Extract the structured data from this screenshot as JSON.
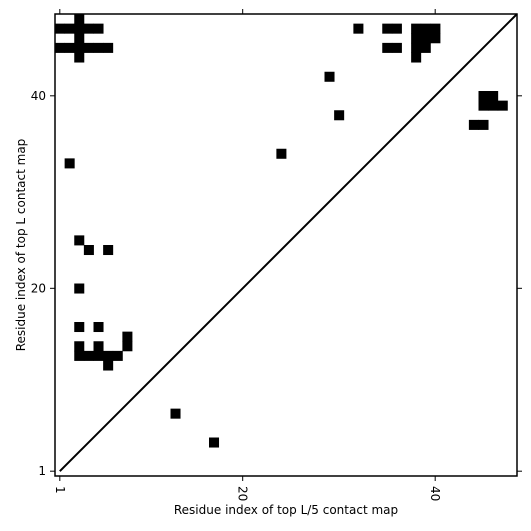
{
  "chart_data": {
    "type": "heatmap",
    "title": "",
    "xlabel": "Residue index of top L/5 contact map",
    "ylabel": "Residue index of top L contact map",
    "xlim": [
      0.5,
      48.5
    ],
    "ylim": [
      0.5,
      48.5
    ],
    "x_ticks": [
      1,
      20,
      40
    ],
    "y_ticks": [
      1,
      20,
      40
    ],
    "diagonal": true,
    "cell_color": "#000000",
    "cells": [
      [
        3,
        48
      ],
      [
        3,
        47
      ],
      [
        3,
        46
      ],
      [
        3,
        45
      ],
      [
        3,
        44
      ],
      [
        1,
        47
      ],
      [
        2,
        47
      ],
      [
        4,
        47
      ],
      [
        5,
        47
      ],
      [
        1,
        45
      ],
      [
        2,
        45
      ],
      [
        4,
        45
      ],
      [
        5,
        45
      ],
      [
        6,
        45
      ],
      [
        32,
        47
      ],
      [
        35,
        47
      ],
      [
        36,
        47
      ],
      [
        35,
        45
      ],
      [
        36,
        45
      ],
      [
        38,
        47
      ],
      [
        39,
        47
      ],
      [
        40,
        47
      ],
      [
        38,
        46
      ],
      [
        39,
        46
      ],
      [
        40,
        46
      ],
      [
        38,
        45
      ],
      [
        39,
        45
      ],
      [
        38,
        44
      ],
      [
        29,
        42
      ],
      [
        30,
        38
      ],
      [
        24,
        34
      ],
      [
        2,
        33
      ],
      [
        45,
        40
      ],
      [
        46,
        40
      ],
      [
        46,
        39
      ],
      [
        47,
        39
      ],
      [
        45,
        39
      ],
      [
        44,
        37
      ],
      [
        45,
        37
      ],
      [
        3,
        25
      ],
      [
        4,
        24
      ],
      [
        6,
        24
      ],
      [
        3,
        20
      ],
      [
        3,
        16
      ],
      [
        5,
        16
      ],
      [
        8,
        15
      ],
      [
        3,
        14
      ],
      [
        5,
        14
      ],
      [
        8,
        14
      ],
      [
        3,
        13
      ],
      [
        4,
        13
      ],
      [
        5,
        13
      ],
      [
        6,
        13
      ],
      [
        7,
        13
      ],
      [
        6,
        12
      ],
      [
        13,
        7
      ],
      [
        17,
        4
      ]
    ]
  }
}
